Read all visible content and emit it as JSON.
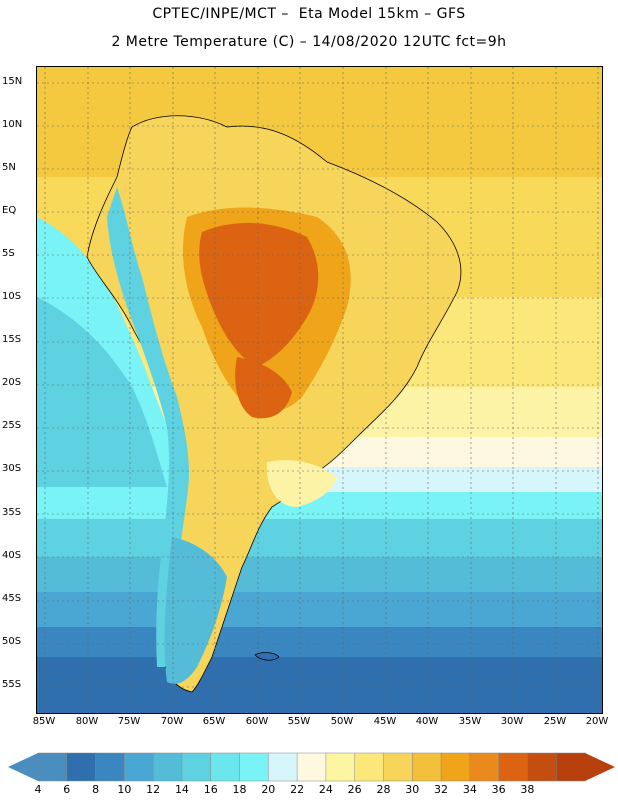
{
  "header": {
    "line1": "CPTEC/INPE/MCT –  Eta Model 15km – GFS",
    "line2": "2 Metre Temperature (C) – 14/08/2020 12UTC fct=9h"
  },
  "axes": {
    "lat_labels": [
      "15N",
      "10N",
      "5N",
      "EQ",
      "5S",
      "10S",
      "15S",
      "20S",
      "25S",
      "30S",
      "35S",
      "40S",
      "45S",
      "50S",
      "55S"
    ],
    "lon_labels": [
      "85W",
      "80W",
      "75W",
      "70W",
      "65W",
      "60W",
      "55W",
      "50W",
      "45W",
      "40W",
      "35W",
      "30W",
      "25W",
      "20W"
    ]
  },
  "colorbar": {
    "ticks": [
      "4",
      "6",
      "8",
      "10",
      "12",
      "14",
      "16",
      "18",
      "20",
      "22",
      "24",
      "26",
      "28",
      "30",
      "32",
      "34",
      "36",
      "38"
    ],
    "colors": [
      "#4a8ec0",
      "#2f6fae",
      "#3a86c0",
      "#4aa6d2",
      "#55bcd8",
      "#5ed2e0",
      "#6ae6ec",
      "#7af3f6",
      "#d6f6fb",
      "#fff8e1",
      "#fdf5a1",
      "#fbe77a",
      "#f7d55a",
      "#f2c03a",
      "#efa419",
      "#ea8a1d",
      "#dc6312",
      "#c44d10",
      "#b8400c"
    ],
    "under_color": "#4a8ec0",
    "over_color": "#b8400c"
  },
  "map": {
    "ocean_north_color": "#f5cc4c",
    "ocean_mid_color": "#fbe87c",
    "ocean_south_cold": "#2f6fae"
  }
}
